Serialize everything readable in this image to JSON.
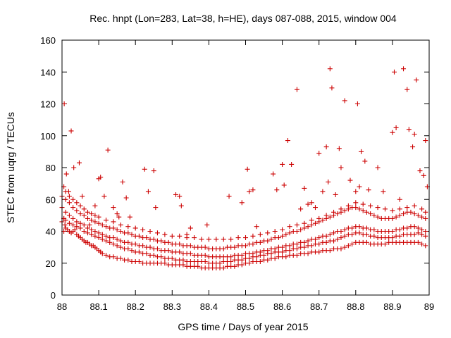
{
  "chart_data": {
    "type": "scatter",
    "title": "Rec. hnpt (Lon=283, Lat=38, h=HE), days 087-088, 2015, window 004",
    "xlabel": "GPS time / Days of year 2015",
    "ylabel": "STEC from uqrg / TECUs",
    "xlim": [
      88,
      89
    ],
    "ylim": [
      0,
      160
    ],
    "xticks": [
      "88",
      "88.1",
      "88.2",
      "88.3",
      "88.4",
      "88.5",
      "88.6",
      "88.7",
      "88.8",
      "88.9",
      "89"
    ],
    "yticks": [
      "0",
      "20",
      "40",
      "60",
      "80",
      "100",
      "120",
      "140",
      "160"
    ],
    "marker": "plus",
    "color": "#cc0000",
    "grid": false,
    "series": [
      {
        "x": [
          88.005,
          88.008,
          88.005,
          88.01,
          88.015,
          88.02,
          88.025,
          88.03,
          88.035,
          88.04,
          88.045,
          88.05,
          88.055,
          88.06,
          88.065,
          88.07,
          88.075,
          88.08,
          88.085,
          88.09,
          88.095,
          88.1,
          88.105,
          88.11,
          88.12,
          88.13,
          88.14,
          88.15,
          88.16,
          88.17,
          88.18,
          88.19,
          88.2,
          88.21,
          88.22,
          88.23,
          88.24,
          88.25,
          88.26,
          88.27,
          88.28,
          88.29,
          88.3,
          88.31,
          88.32,
          88.33,
          88.34,
          88.35,
          88.36,
          88.37,
          88.38,
          88.39,
          88.4,
          88.41,
          88.42,
          88.43,
          88.44,
          88.45,
          88.46,
          88.47,
          88.48,
          88.49,
          88.5,
          88.51,
          88.52,
          88.53,
          88.54,
          88.55,
          88.56,
          88.57,
          88.58,
          88.59,
          88.6,
          88.61,
          88.62,
          88.63,
          88.64,
          88.65,
          88.66,
          88.67,
          88.68,
          88.69,
          88.7,
          88.71,
          88.72,
          88.73,
          88.74,
          88.75,
          88.76,
          88.77,
          88.78,
          88.79,
          88.8,
          88.81,
          88.82,
          88.83,
          88.84,
          88.85,
          88.86,
          88.87,
          88.88,
          88.89,
          88.9,
          88.91,
          88.92,
          88.93,
          88.94,
          88.95,
          88.96,
          88.97,
          88.98,
          88.99
        ],
        "y": [
          40,
          44,
          48,
          42,
          41,
          40,
          39,
          40,
          41,
          38,
          37,
          36,
          35,
          34,
          33,
          33,
          32,
          31,
          31,
          30,
          29,
          28,
          27,
          26,
          25,
          24,
          24,
          23,
          23,
          22,
          22,
          21,
          21,
          21,
          20,
          20,
          20,
          20,
          20,
          20,
          20,
          19,
          19,
          19,
          19,
          19,
          18,
          18,
          18,
          18,
          17,
          17,
          17,
          17,
          17,
          17,
          17,
          18,
          18,
          18,
          19,
          19,
          20,
          20,
          21,
          21,
          21,
          22,
          22,
          23,
          23,
          24,
          24,
          24,
          25,
          25,
          25,
          26,
          26,
          26,
          27,
          27,
          27,
          28,
          28,
          28,
          29,
          29,
          29,
          30,
          31,
          32,
          33,
          33,
          33,
          33,
          32,
          32,
          32,
          32,
          32,
          33,
          33,
          33,
          33,
          33,
          33,
          33,
          33,
          33,
          32,
          31
        ]
      },
      {
        "x": [
          88.0,
          88.005,
          88.01,
          88.02,
          88.03,
          88.04,
          88.05,
          88.06,
          88.07,
          88.08,
          88.09,
          88.1,
          88.11,
          88.12,
          88.13,
          88.14,
          88.15,
          88.16,
          88.17,
          88.18,
          88.19,
          88.2,
          88.21,
          88.22,
          88.23,
          88.24,
          88.25,
          88.26,
          88.27,
          88.28,
          88.29,
          88.3,
          88.31,
          88.32,
          88.33,
          88.34,
          88.35,
          88.36,
          88.37,
          88.38,
          88.39,
          88.4,
          88.41,
          88.42,
          88.43,
          88.44,
          88.45,
          88.46,
          88.47,
          88.48,
          88.49,
          88.5,
          88.51,
          88.52,
          88.53,
          88.54,
          88.55,
          88.56,
          88.57,
          88.58,
          88.59,
          88.6,
          88.61,
          88.62,
          88.63,
          88.64,
          88.65,
          88.66,
          88.67,
          88.68,
          88.69,
          88.7,
          88.71,
          88.72,
          88.73,
          88.74,
          88.75,
          88.76,
          88.77,
          88.78,
          88.79,
          88.8,
          88.81,
          88.82,
          88.83,
          88.84,
          88.85,
          88.86,
          88.87,
          88.88,
          88.89,
          88.9,
          88.91,
          88.92,
          88.93,
          88.94,
          88.95,
          88.96,
          88.97,
          88.98,
          88.99
        ],
        "y": [
          46,
          48,
          47,
          45,
          44,
          43,
          42,
          40,
          39,
          38,
          37,
          36,
          35,
          34,
          33,
          32,
          31,
          30,
          29,
          29,
          28,
          27,
          27,
          26,
          26,
          25,
          25,
          24,
          24,
          23,
          23,
          23,
          22,
          22,
          22,
          21,
          21,
          21,
          21,
          21,
          21,
          20,
          20,
          20,
          20,
          21,
          21,
          21,
          22,
          22,
          22,
          23,
          23,
          24,
          24,
          25,
          25,
          26,
          26,
          27,
          27,
          27,
          28,
          28,
          29,
          29,
          30,
          30,
          31,
          31,
          32,
          32,
          33,
          33,
          34,
          34,
          35,
          36,
          37,
          38,
          38,
          39,
          39,
          38,
          38,
          37,
          37,
          36,
          36,
          36,
          36,
          36,
          37,
          37,
          38,
          38,
          38,
          38,
          39,
          38,
          37
        ]
      },
      {
        "x": [
          88.0,
          88.01,
          88.02,
          88.03,
          88.04,
          88.05,
          88.06,
          88.07,
          88.08,
          88.09,
          88.1,
          88.11,
          88.12,
          88.13,
          88.14,
          88.15,
          88.16,
          88.17,
          88.18,
          88.19,
          88.2,
          88.21,
          88.22,
          88.23,
          88.24,
          88.25,
          88.26,
          88.27,
          88.28,
          88.29,
          88.3,
          88.31,
          88.32,
          88.33,
          88.34,
          88.35,
          88.36,
          88.37,
          88.38,
          88.39,
          88.4,
          88.41,
          88.42,
          88.43,
          88.44,
          88.45,
          88.46,
          88.47,
          88.48,
          88.49,
          88.5,
          88.51,
          88.52,
          88.53,
          88.54,
          88.55,
          88.56,
          88.57,
          88.58,
          88.59,
          88.6,
          88.61,
          88.62,
          88.63,
          88.64,
          88.65,
          88.66,
          88.67,
          88.68,
          88.69,
          88.7,
          88.71,
          88.72,
          88.73,
          88.74,
          88.75,
          88.76,
          88.77,
          88.78,
          88.79,
          88.8,
          88.81,
          88.82,
          88.83,
          88.84,
          88.85,
          88.86,
          88.87,
          88.88,
          88.89,
          88.9,
          88.91,
          88.92,
          88.93,
          88.94,
          88.95,
          88.96,
          88.97,
          88.98,
          88.99
        ],
        "y": [
          55,
          52,
          50,
          48,
          46,
          45,
          44,
          42,
          41,
          40,
          39,
          38,
          37,
          36,
          36,
          35,
          34,
          33,
          33,
          32,
          32,
          31,
          31,
          30,
          30,
          29,
          29,
          28,
          28,
          28,
          27,
          27,
          27,
          26,
          26,
          26,
          25,
          25,
          25,
          25,
          24,
          24,
          24,
          24,
          24,
          24,
          24,
          25,
          25,
          25,
          26,
          26,
          26,
          27,
          27,
          28,
          28,
          29,
          29,
          30,
          30,
          31,
          31,
          32,
          32,
          33,
          33,
          34,
          35,
          35,
          36,
          37,
          37,
          38,
          39,
          40,
          40,
          41,
          42,
          42,
          43,
          43,
          42,
          42,
          41,
          41,
          40,
          40,
          40,
          40,
          40,
          41,
          41,
          42,
          42,
          43,
          43,
          42,
          41,
          40
        ]
      },
      {
        "x": [
          88.0,
          88.01,
          88.02,
          88.03,
          88.04,
          88.05,
          88.06,
          88.07,
          88.08,
          88.09,
          88.1,
          88.11,
          88.12,
          88.13,
          88.14,
          88.15,
          88.16,
          88.17,
          88.18,
          88.19,
          88.2,
          88.21,
          88.22,
          88.23,
          88.24,
          88.25,
          88.26,
          88.27,
          88.28,
          88.29,
          88.3,
          88.31,
          88.32,
          88.33,
          88.34,
          88.35,
          88.36,
          88.37,
          88.38,
          88.39,
          88.4,
          88.41,
          88.42,
          88.43,
          88.44,
          88.45,
          88.46,
          88.47,
          88.48,
          88.49,
          88.5,
          88.51,
          88.52,
          88.53,
          88.54,
          88.55,
          88.56,
          88.57,
          88.58,
          88.59,
          88.6,
          88.61,
          88.62,
          88.63,
          88.64,
          88.65,
          88.66,
          88.67,
          88.68,
          88.69,
          88.7,
          88.71,
          88.72,
          88.73,
          88.74,
          88.75,
          88.76,
          88.77,
          88.78,
          88.79,
          88.8,
          88.81,
          88.82,
          88.83,
          88.84,
          88.85,
          88.86,
          88.87,
          88.88,
          88.89,
          88.9,
          88.91,
          88.92,
          88.93,
          88.94,
          88.95,
          88.96,
          88.97,
          88.98,
          88.99
        ],
        "y": [
          62,
          60,
          58,
          55,
          53,
          51,
          50,
          48,
          47,
          46,
          45,
          44,
          43,
          42,
          42,
          41,
          40,
          39,
          39,
          38,
          37,
          37,
          36,
          36,
          35,
          35,
          34,
          34,
          33,
          33,
          32,
          32,
          32,
          31,
          31,
          31,
          30,
          30,
          30,
          30,
          29,
          29,
          29,
          29,
          29,
          30,
          30,
          30,
          31,
          31,
          31,
          32,
          32,
          33,
          33,
          34,
          34,
          35,
          36,
          36,
          37,
          38,
          39,
          40,
          40,
          41,
          42,
          43,
          44,
          45,
          46,
          47,
          48,
          49,
          50,
          51,
          52,
          53,
          54,
          55,
          55,
          54,
          53,
          52,
          51,
          50,
          49,
          48,
          48,
          48,
          48,
          49,
          50,
          51,
          52,
          52,
          51,
          50,
          49,
          48
        ]
      },
      {
        "x": [
          88.005,
          88.01,
          88.02,
          88.03,
          88.04,
          88.05,
          88.06,
          88.07,
          88.08,
          88.09,
          88.1,
          88.12,
          88.14,
          88.16,
          88.18,
          88.2,
          88.22,
          88.24,
          88.26,
          88.28,
          88.3,
          88.32,
          88.34,
          88.36,
          88.38,
          88.4,
          88.42,
          88.44,
          88.46,
          88.48,
          88.5,
          88.52,
          88.54,
          88.56,
          88.58,
          88.6,
          88.62,
          88.64,
          88.66,
          88.68,
          88.7,
          88.72,
          88.74,
          88.76,
          88.78,
          88.8,
          88.82,
          88.84,
          88.86,
          88.88,
          88.9,
          88.92,
          88.94,
          88.96,
          88.98,
          88.99
        ],
        "y": [
          68,
          65,
          62,
          60,
          58,
          56,
          54,
          52,
          51,
          50,
          49,
          47,
          46,
          44,
          43,
          42,
          41,
          40,
          39,
          38,
          37,
          37,
          36,
          36,
          35,
          35,
          35,
          35,
          35,
          36,
          36,
          37,
          38,
          39,
          40,
          41,
          43,
          44,
          45,
          47,
          48,
          50,
          52,
          54,
          56,
          58,
          57,
          56,
          55,
          54,
          53,
          54,
          55,
          56,
          54,
          52
        ]
      },
      {
        "x": [
          88.006,
          88.012,
          88.018,
          88.025,
          88.032,
          88.047,
          88.055,
          88.075,
          88.09,
          88.1,
          88.105,
          88.115,
          88.125,
          88.14,
          88.15,
          88.155,
          88.165,
          88.175,
          88.185,
          88.225,
          88.235,
          88.25,
          88.255,
          88.31,
          88.32,
          88.325,
          88.34,
          88.35,
          88.395,
          88.455,
          88.49,
          88.505,
          88.51,
          88.52,
          88.53,
          88.575,
          88.585,
          88.6,
          88.605,
          88.615,
          88.625,
          88.64,
          88.65,
          88.66,
          88.67,
          88.68,
          88.69,
          88.7,
          88.71,
          88.72,
          88.725,
          88.73,
          88.735,
          88.745,
          88.755,
          88.76,
          88.77,
          88.785,
          88.8,
          88.805,
          88.81,
          88.815,
          88.825,
          88.835,
          88.86,
          88.875,
          88.9,
          88.905,
          88.91,
          88.92,
          88.93,
          88.94,
          88.945,
          88.955,
          88.96,
          88.965,
          88.975,
          88.985,
          88.99,
          88.995
        ],
        "y": [
          120,
          76,
          65,
          103,
          80,
          83,
          62,
          44,
          56,
          73,
          74,
          62,
          91,
          55,
          51,
          49,
          71,
          61,
          49,
          79,
          65,
          78,
          55,
          63,
          62,
          56,
          38,
          42,
          44,
          62,
          58,
          79,
          65,
          66,
          43,
          76,
          66,
          82,
          69,
          97,
          82,
          129,
          54,
          67,
          57,
          58,
          55,
          89,
          65,
          93,
          71,
          142,
          130,
          63,
          92,
          80,
          122,
          72,
          65,
          120,
          68,
          90,
          84,
          66,
          80,
          65,
          102,
          140,
          105,
          60,
          142,
          129,
          104,
          93,
          101,
          135,
          78,
          75,
          97,
          68
        ]
      }
    ]
  }
}
